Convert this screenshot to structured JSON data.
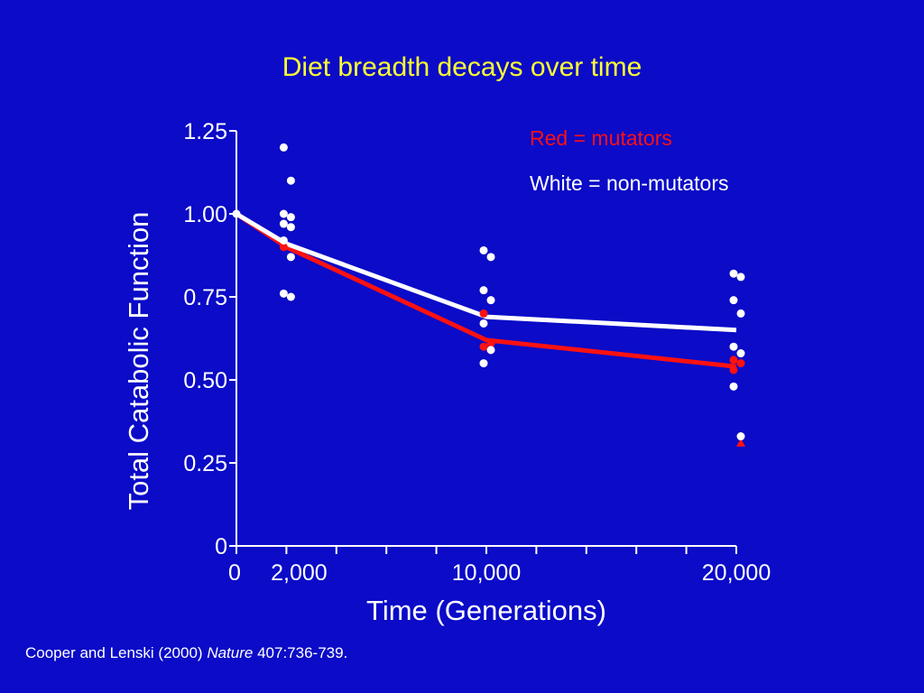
{
  "slide": {
    "title": "Diet breadth decays over time",
    "citation": {
      "authors": "Cooper and Lenski (2000)",
      "journal": "Nature",
      "pages": "407:736-739."
    }
  },
  "colors": {
    "background": "#0b0bc8",
    "title": "#ffff33",
    "axis": "#ffffff",
    "mutators": "#ff1111",
    "non_mutators": "#ffffff"
  },
  "chart_data": {
    "type": "scatter",
    "title": "Diet breadth decays over time",
    "xlabel": "Time (Generations)",
    "ylabel": "Total Catabolic Function",
    "xlim": [
      0,
      20000
    ],
    "ylim": [
      0,
      1.25
    ],
    "x_ticks": [
      0,
      2000,
      4000,
      6000,
      8000,
      10000,
      12000,
      14000,
      16000,
      18000,
      20000
    ],
    "x_tick_labels": [
      {
        "x": 0,
        "label": "0"
      },
      {
        "x": 2000,
        "label": "2,000"
      },
      {
        "x": 10000,
        "label": "10,000"
      },
      {
        "x": 20000,
        "label": "20,000"
      }
    ],
    "y_ticks": [
      {
        "y": 0,
        "label": "0"
      },
      {
        "y": 0.25,
        "label": "0.25"
      },
      {
        "y": 0.5,
        "label": "0.50"
      },
      {
        "y": 0.75,
        "label": "0.75"
      },
      {
        "y": 1.0,
        "label": "1.00"
      },
      {
        "y": 1.25,
        "label": "1.25"
      }
    ],
    "grid": false,
    "legend_position": "top-right",
    "legend": [
      {
        "text": "Red = mutators",
        "color": "#ff1111"
      },
      {
        "text": "White = non-mutators",
        "color": "#ffffff"
      }
    ],
    "series": [
      {
        "group": "mutators",
        "color": "#ff1111",
        "mean_line": {
          "x": [
            0,
            2000,
            10000,
            20000
          ],
          "y": [
            1.0,
            0.9,
            0.62,
            0.54
          ]
        },
        "points": [
          {
            "x": 2000,
            "y": 0.9
          },
          {
            "x": 10000,
            "y": 0.7
          },
          {
            "x": 10000,
            "y": 0.61
          },
          {
            "x": 10000,
            "y": 0.6
          },
          {
            "x": 10000,
            "y": 0.59
          },
          {
            "x": 20000,
            "y": 0.56
          },
          {
            "x": 20000,
            "y": 0.55
          },
          {
            "x": 20000,
            "y": 0.53
          },
          {
            "x": 20000,
            "y": 0.31,
            "marker": "triangle"
          }
        ]
      },
      {
        "group": "non-mutators",
        "color": "#ffffff",
        "mean_line": {
          "x": [
            0,
            2000,
            10000,
            20000
          ],
          "y": [
            1.0,
            0.91,
            0.69,
            0.65
          ]
        },
        "points": [
          {
            "x": 0,
            "y": 1.0
          },
          {
            "x": 2000,
            "y": 1.2
          },
          {
            "x": 2000,
            "y": 1.1
          },
          {
            "x": 2000,
            "y": 1.0
          },
          {
            "x": 2000,
            "y": 0.99
          },
          {
            "x": 2000,
            "y": 0.97
          },
          {
            "x": 2000,
            "y": 0.96
          },
          {
            "x": 2000,
            "y": 0.92
          },
          {
            "x": 2000,
            "y": 0.87
          },
          {
            "x": 2000,
            "y": 0.76
          },
          {
            "x": 2000,
            "y": 0.75
          },
          {
            "x": 10000,
            "y": 0.89
          },
          {
            "x": 10000,
            "y": 0.87
          },
          {
            "x": 10000,
            "y": 0.77
          },
          {
            "x": 10000,
            "y": 0.74
          },
          {
            "x": 10000,
            "y": 0.67
          },
          {
            "x": 10000,
            "y": 0.59
          },
          {
            "x": 10000,
            "y": 0.55
          },
          {
            "x": 20000,
            "y": 0.82
          },
          {
            "x": 20000,
            "y": 0.81
          },
          {
            "x": 20000,
            "y": 0.74
          },
          {
            "x": 20000,
            "y": 0.7
          },
          {
            "x": 20000,
            "y": 0.6
          },
          {
            "x": 20000,
            "y": 0.58
          },
          {
            "x": 20000,
            "y": 0.48
          },
          {
            "x": 20000,
            "y": 0.33
          }
        ]
      }
    ]
  }
}
